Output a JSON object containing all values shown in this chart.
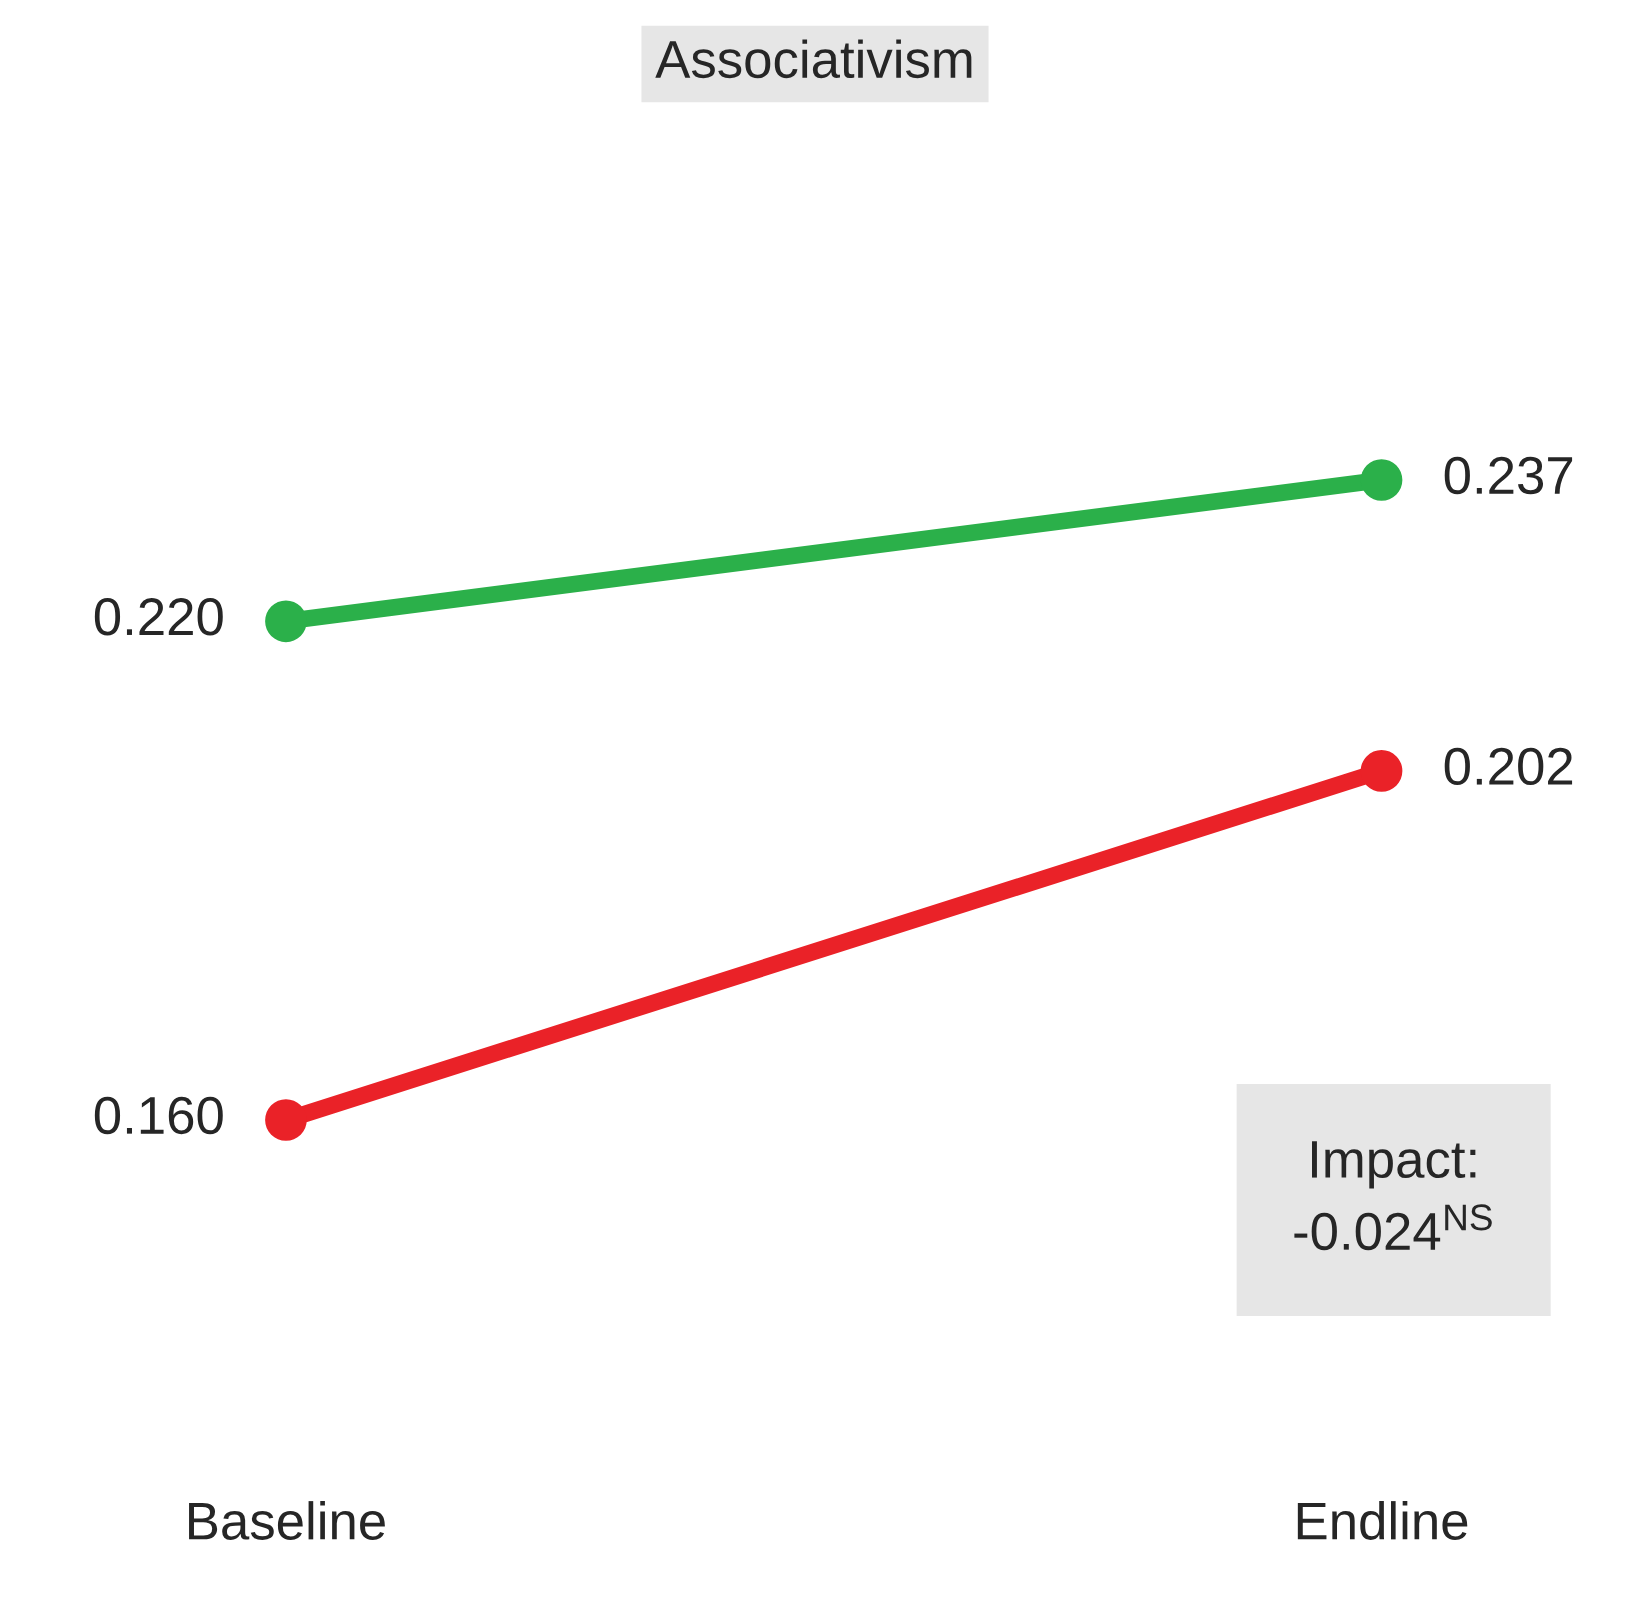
{
  "chart_data": {
    "type": "line",
    "title": "Associativism",
    "categories": [
      "Baseline",
      "Endline"
    ],
    "series": [
      {
        "color": "#2bb04a",
        "values": [
          0.22,
          0.237
        ],
        "value_labels": [
          "0.220",
          "0.237"
        ]
      },
      {
        "color": "#ea2228",
        "values": [
          0.16,
          0.202
        ],
        "value_labels": [
          "0.160",
          "0.202"
        ]
      }
    ],
    "marker": "circle",
    "line_style": "solid",
    "grid": false,
    "legend": false,
    "tick_labels": "x",
    "annotations": [
      "Impact:\n-0.024$^{NS}$"
    ]
  }
}
